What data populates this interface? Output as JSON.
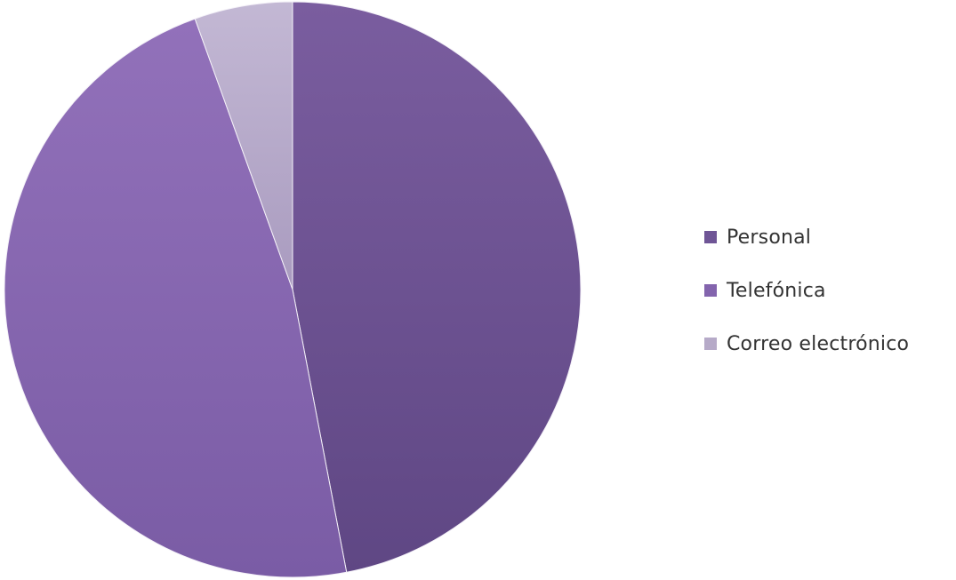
{
  "chart_data": {
    "type": "pie",
    "title": "",
    "legend_position": "right",
    "start_angle_deg": 0,
    "direction": "clockwise",
    "slices": [
      {
        "label": "Personal",
        "value": 47,
        "color": "#6f5596",
        "color_light": "#7a5d9f",
        "color_dark": "#5f4784"
      },
      {
        "label": "Telefónica",
        "value": 47.5,
        "color": "#8364ad",
        "color_light": "#9271ba",
        "color_dark": "#7a5ca5"
      },
      {
        "label": "Correo electrónico",
        "value": 5.5,
        "color": "#b6aac8",
        "color_light": "#c3b8d4",
        "color_dark": "#a99bbf"
      }
    ]
  },
  "colors": {
    "background": "#ffffff",
    "separator": "#f4f1f8",
    "legend_text": "#333333"
  }
}
